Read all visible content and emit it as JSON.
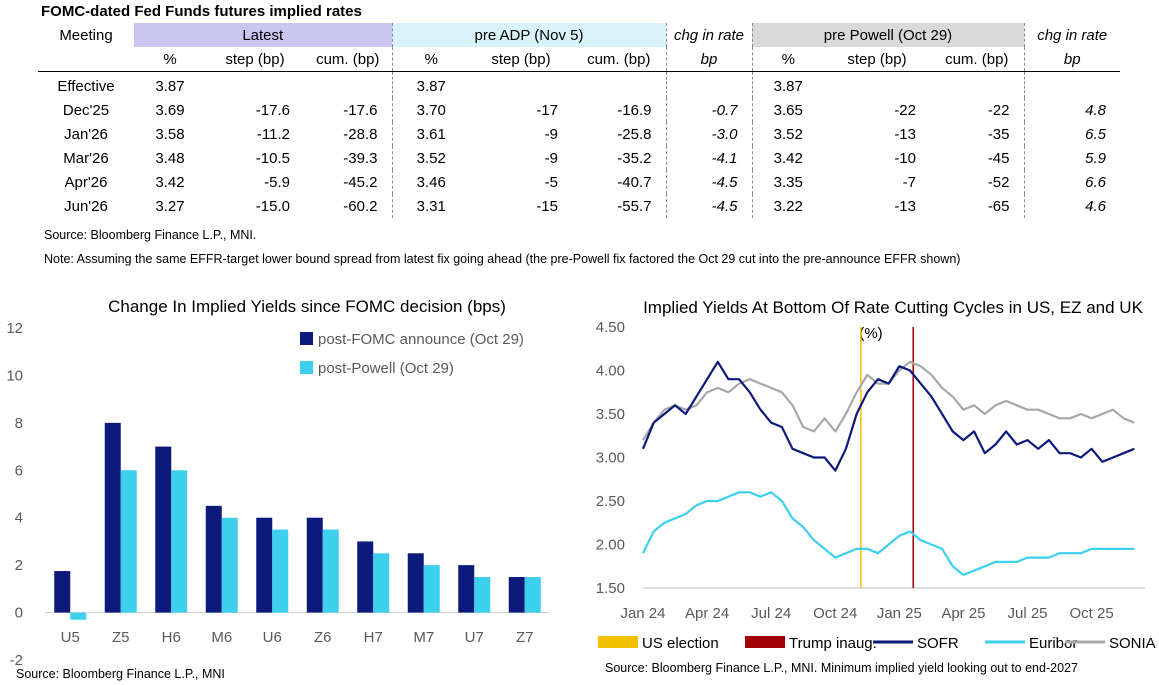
{
  "table": {
    "title": "FOMC-dated Fed Funds futures implied rates",
    "groups": {
      "meeting": "Meeting",
      "latest": "Latest",
      "pre_adp": "pre ADP (Nov 5)",
      "chg1": "chg in rate",
      "pre_powell": "pre Powell (Oct 29)",
      "chg2": "chg in rate"
    },
    "subheaders": [
      "%",
      "step (bp)",
      "cum. (bp)",
      "%",
      "step (bp)",
      "cum. (bp)",
      "bp",
      "%",
      "step (bp)",
      "cum. (bp)",
      "bp"
    ],
    "rows": [
      [
        "Effective",
        "3.87",
        "",
        "",
        "3.87",
        "",
        "",
        "",
        "3.87",
        "",
        "",
        ""
      ],
      [
        "Dec'25",
        "3.69",
        "-17.6",
        "-17.6",
        "3.70",
        "-17",
        "-16.9",
        "-0.7",
        "3.65",
        "-22",
        "-22",
        "4.8"
      ],
      [
        "Jan'26",
        "3.58",
        "-11.2",
        "-28.8",
        "3.61",
        "-9",
        "-25.8",
        "-3.0",
        "3.52",
        "-13",
        "-35",
        "6.5"
      ],
      [
        "Mar'26",
        "3.48",
        "-10.5",
        "-39.3",
        "3.52",
        "-9",
        "-35.2",
        "-4.1",
        "3.42",
        "-10",
        "-45",
        "5.9"
      ],
      [
        "Apr'26",
        "3.42",
        "-5.9",
        "-45.2",
        "3.46",
        "-5",
        "-40.7",
        "-4.5",
        "3.35",
        "-7",
        "-52",
        "6.6"
      ],
      [
        "Jun'26",
        "3.27",
        "-15.0",
        "-60.2",
        "3.31",
        "-15",
        "-55.7",
        "-4.5",
        "3.22",
        "-13",
        "-65",
        "4.6"
      ]
    ],
    "source": "Source: Bloomberg Finance L.P., MNI.",
    "note": "Note: Assuming the same  EFFR-target lower bound spread from latest fix going ahead (the pre-Powell fix factored the Oct 29 cut into the pre-announce EFFR shown)"
  },
  "chart_data": [
    {
      "type": "bar",
      "title": "Change In Implied Yields since FOMC decision (bps)",
      "categories": [
        "U5",
        "Z5",
        "H6",
        "M6",
        "U6",
        "Z6",
        "H7",
        "M7",
        "U7",
        "Z7"
      ],
      "series": [
        {
          "name": "post-FOMC announce (Oct 29)",
          "color": "#0c1a7c",
          "values": [
            1.75,
            8.0,
            7.0,
            4.5,
            4.0,
            4.0,
            3.0,
            2.5,
            2.0,
            1.5
          ]
        },
        {
          "name": "post-Powell (Oct 29)",
          "color": "#3ccfee",
          "values": [
            -0.3,
            6.0,
            6.0,
            4.0,
            3.5,
            3.5,
            2.5,
            2.0,
            1.5,
            1.5
          ]
        }
      ],
      "ylim": [
        -2,
        12
      ],
      "yticks": [
        "-2",
        "0",
        "2",
        "4",
        "6",
        "8",
        "10",
        "12"
      ],
      "source": "Source: Bloomberg Finance L.P., MNI"
    },
    {
      "type": "line",
      "title": "Implied Yields At Bottom Of Rate Cutting Cycles in US, EZ and UK",
      "unit": "(%)",
      "xlim": [
        0,
        23.5
      ],
      "ylim": [
        1.5,
        4.5
      ],
      "yticks": [
        "1.50",
        "2.00",
        "2.50",
        "3.00",
        "3.50",
        "4.00",
        "4.50"
      ],
      "xticks": [
        {
          "label": "Jan 24",
          "value": 0
        },
        {
          "label": "Apr 24",
          "value": 3
        },
        {
          "label": "Jul 24",
          "value": 6
        },
        {
          "label": "Oct 24",
          "value": 9
        },
        {
          "label": "Jan 25",
          "value": 12
        },
        {
          "label": "Apr 25",
          "value": 15
        },
        {
          "label": "Jul 25",
          "value": 18
        },
        {
          "label": "Oct 25",
          "value": 21
        }
      ],
      "events": [
        {
          "name": "US election",
          "x": 10.2,
          "color": "#f5c000"
        },
        {
          "name": "Trump inaug.",
          "x": 12.65,
          "color": "#a00000"
        }
      ],
      "series": [
        {
          "name": "SOFR",
          "color": "#0c1a7c",
          "x": [
            0,
            0.5,
            1,
            1.5,
            2,
            2.5,
            3,
            3.5,
            4,
            4.5,
            5,
            5.5,
            6,
            6.5,
            7,
            7.5,
            8,
            8.5,
            9,
            9.5,
            10,
            10.5,
            11,
            11.5,
            12,
            12.5,
            13,
            13.5,
            14,
            14.5,
            15,
            15.5,
            16,
            16.5,
            17,
            17.5,
            18,
            18.5,
            19,
            19.5,
            20,
            20.5,
            21,
            21.5,
            22,
            22.5,
            23
          ],
          "values": [
            3.1,
            3.4,
            3.5,
            3.6,
            3.5,
            3.7,
            3.9,
            4.1,
            3.9,
            3.9,
            3.75,
            3.55,
            3.4,
            3.35,
            3.1,
            3.05,
            3.0,
            3.0,
            2.85,
            3.1,
            3.5,
            3.75,
            3.9,
            3.85,
            4.05,
            4.0,
            3.85,
            3.7,
            3.5,
            3.3,
            3.2,
            3.3,
            3.05,
            3.15,
            3.3,
            3.15,
            3.2,
            3.1,
            3.2,
            3.05,
            3.05,
            3.0,
            3.1,
            2.95,
            3.0,
            3.05,
            3.1
          ]
        },
        {
          "name": "Euribor",
          "color": "#3ccfee",
          "x": [
            0,
            0.5,
            1,
            1.5,
            2,
            2.5,
            3,
            3.5,
            4,
            4.5,
            5,
            5.5,
            6,
            6.5,
            7,
            7.5,
            8,
            8.5,
            9,
            9.5,
            10,
            10.5,
            11,
            11.5,
            12,
            12.5,
            13,
            13.5,
            14,
            14.5,
            15,
            15.5,
            16,
            16.5,
            17,
            17.5,
            18,
            18.5,
            19,
            19.5,
            20,
            20.5,
            21,
            21.5,
            22,
            22.5,
            23
          ],
          "values": [
            1.9,
            2.15,
            2.25,
            2.3,
            2.35,
            2.45,
            2.5,
            2.5,
            2.55,
            2.6,
            2.6,
            2.55,
            2.6,
            2.5,
            2.3,
            2.2,
            2.05,
            1.95,
            1.85,
            1.9,
            1.95,
            1.95,
            1.9,
            2.0,
            2.1,
            2.15,
            2.05,
            2.0,
            1.95,
            1.75,
            1.65,
            1.7,
            1.75,
            1.8,
            1.8,
            1.8,
            1.85,
            1.85,
            1.85,
            1.9,
            1.9,
            1.9,
            1.95,
            1.95,
            1.95,
            1.95,
            1.95
          ]
        },
        {
          "name": "SONIA",
          "color": "#a8a8a8",
          "x": [
            0,
            0.5,
            1,
            1.5,
            2,
            2.5,
            3,
            3.5,
            4,
            4.5,
            5,
            5.5,
            6,
            6.5,
            7,
            7.5,
            8,
            8.5,
            9,
            9.5,
            10,
            10.5,
            11,
            11.5,
            12,
            12.5,
            13,
            13.5,
            14,
            14.5,
            15,
            15.5,
            16,
            16.5,
            17,
            17.5,
            18,
            18.5,
            19,
            19.5,
            20,
            20.5,
            21,
            21.5,
            22,
            22.5,
            23
          ],
          "values": [
            3.2,
            3.4,
            3.55,
            3.6,
            3.55,
            3.6,
            3.75,
            3.8,
            3.75,
            3.85,
            3.9,
            3.85,
            3.8,
            3.75,
            3.6,
            3.35,
            3.3,
            3.45,
            3.3,
            3.5,
            3.75,
            3.95,
            3.85,
            3.85,
            4.0,
            4.1,
            4.05,
            3.95,
            3.8,
            3.7,
            3.55,
            3.6,
            3.5,
            3.6,
            3.65,
            3.6,
            3.55,
            3.55,
            3.5,
            3.45,
            3.45,
            3.5,
            3.45,
            3.5,
            3.55,
            3.45,
            3.4
          ]
        }
      ],
      "source": "Source: Bloomberg Finance L.P., MNI. Minimum implied yield looking out to end-2027"
    }
  ]
}
